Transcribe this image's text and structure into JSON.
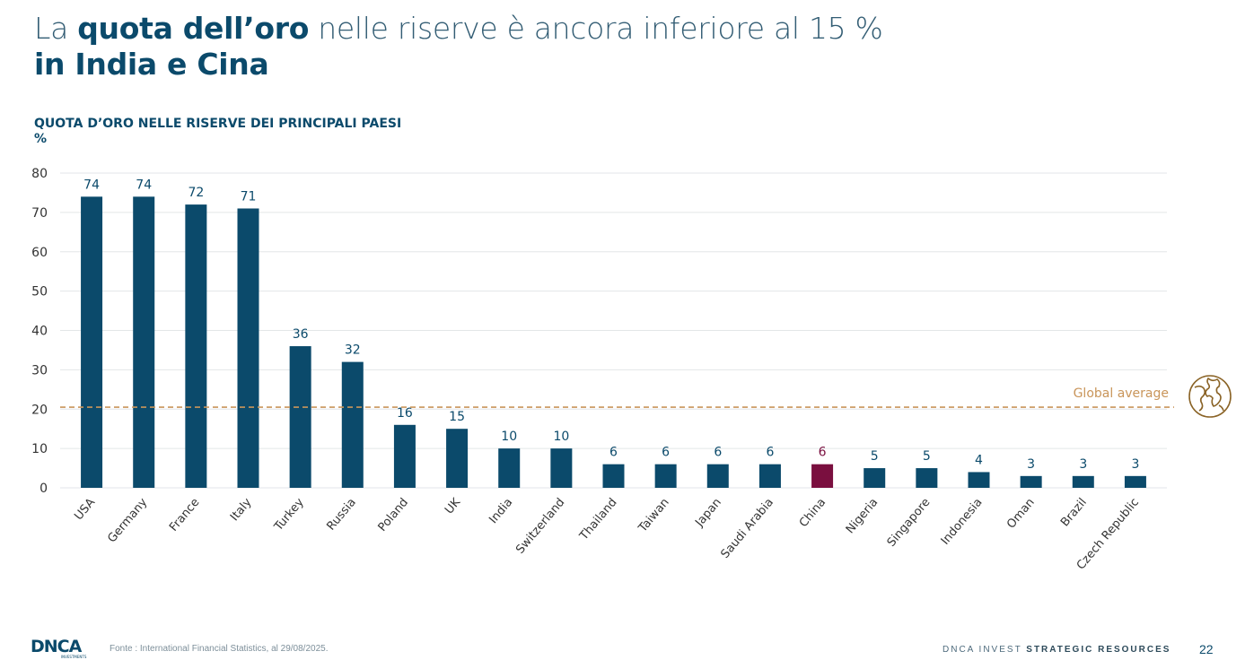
{
  "title": {
    "part1": "La ",
    "bold1": "quota dell’oro",
    "part2": " nelle riserve è ancora inferiore al 15 %",
    "line2": "in India e Cina"
  },
  "chart_subtitle": "QUOTA D’ORO NELLE RISERVE DEI PRINCIPALI PAESI",
  "unit": "%",
  "colors": {
    "primary": "#0b4a6b",
    "highlight": "#7a0f3f",
    "average": "#c9955a",
    "grid": "#e3e6e8"
  },
  "icon": "globe-icon",
  "chart_data": {
    "type": "bar",
    "categories": [
      "USA",
      "Germany",
      "France",
      "Italy",
      "Turkey",
      "Russia",
      "Poland",
      "UK",
      "India",
      "Switzerland",
      "Thailand",
      "Taiwan",
      "Japan",
      "Saudi Arabia",
      "China",
      "Nigeria",
      "Singapore",
      "Indonesia",
      "Oman",
      "Brazil",
      "Czech Republic"
    ],
    "values": [
      74,
      74,
      72,
      71,
      36,
      32,
      16,
      15,
      10,
      10,
      6,
      6,
      6,
      6,
      6,
      5,
      5,
      4,
      3,
      3,
      3
    ],
    "highlight": "China",
    "ylim": [
      0,
      80
    ],
    "yticks": [
      0,
      10,
      20,
      30,
      40,
      50,
      60,
      70,
      80
    ],
    "grid": true,
    "reference_line": {
      "label": "Global average",
      "value": 20.5
    }
  },
  "footer": {
    "logo": "DNCA",
    "logo_sub": "INVESTMENTS",
    "source": "Fonte : International Financial Statistics, al 29/08/2025.",
    "brand_prefix": "DNCA INVEST ",
    "brand_bold": "STRATEGIC RESOURCES",
    "page": "22"
  }
}
